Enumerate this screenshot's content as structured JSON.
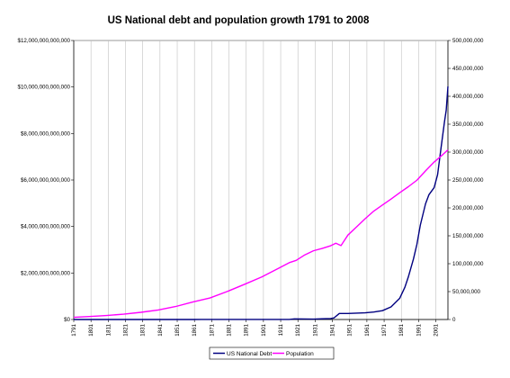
{
  "chart_data": {
    "type": "line",
    "title": "US National debt and population growth 1791 to 2008",
    "xlabel": "",
    "ylabel": "",
    "x_range": [
      1791,
      2008
    ],
    "x_tick_labels": [
      "1791",
      "1801",
      "1811",
      "1821",
      "1831",
      "1841",
      "1851",
      "1861",
      "1871",
      "1881",
      "1891",
      "1901",
      "1911",
      "1921",
      "1931",
      "1941",
      "1951",
      "1961",
      "1971",
      "1981",
      "1991",
      "2001"
    ],
    "y_left": {
      "ylim": [
        0,
        12000000000000
      ],
      "tick_labels": [
        "$0",
        "$2,000,000,000,000",
        "$4,000,000,000,000",
        "$6,000,000,000,000",
        "$8,000,000,000,000",
        "$10,000,000,000,000",
        "$12,000,000,000,000"
      ],
      "tick_values": [
        0,
        2000000000000,
        4000000000000,
        6000000000000,
        8000000000000,
        10000000000000,
        12000000000000
      ]
    },
    "y_right": {
      "ylim": [
        0,
        500000000
      ],
      "tick_labels": [
        "0",
        "50,000,000",
        "100,000,000",
        "150,000,000",
        "200,000,000",
        "250,000,000",
        "300,000,000",
        "350,000,000",
        "400,000,000",
        "450,000,000",
        "500,000,000"
      ],
      "tick_values": [
        0,
        50000000,
        100000000,
        150000000,
        200000000,
        250000000,
        300000000,
        350000000,
        400000000,
        450000000,
        500000000
      ]
    },
    "grid": true,
    "legend_position": "bottom",
    "series": [
      {
        "name": "US National Debt",
        "axis": "left",
        "color": "#000080",
        "x": [
          1791,
          1800,
          1810,
          1820,
          1830,
          1840,
          1850,
          1860,
          1865,
          1870,
          1880,
          1890,
          1900,
          1910,
          1916,
          1919,
          1925,
          1930,
          1935,
          1940,
          1942,
          1945,
          1950,
          1955,
          1960,
          1965,
          1970,
          1975,
          1980,
          1983,
          1985,
          1988,
          1990,
          1992,
          1995,
          1997,
          2000,
          2002,
          2004,
          2006,
          2007,
          2008
        ],
        "y": [
          0,
          0,
          0,
          0,
          0,
          0,
          0,
          0,
          3000000000,
          2000000000,
          2000000000,
          1000000000,
          1000000000,
          1000000000,
          1000000000,
          25000000000,
          21000000000,
          16000000000,
          29000000000,
          43000000000,
          72000000000,
          260000000000,
          257000000000,
          274000000000,
          286000000000,
          322000000000,
          380000000000,
          541000000000,
          908000000000,
          1380000000000,
          1823000000000,
          2600000000000,
          3233000000000,
          4065000000000,
          4974000000000,
          5369000000000,
          5674000000000,
          6228000000000,
          7379000000000,
          8507000000000,
          9000000000000,
          10025000000000
        ]
      },
      {
        "name": "Population",
        "axis": "right",
        "color": "#ff00ff",
        "x": [
          1791,
          1800,
          1810,
          1820,
          1830,
          1840,
          1850,
          1860,
          1870,
          1880,
          1890,
          1900,
          1910,
          1916,
          1920,
          1925,
          1930,
          1935,
          1940,
          1943,
          1946,
          1950,
          1955,
          1960,
          1965,
          1970,
          1975,
          1980,
          1985,
          1990,
          1995,
          2000,
          2005,
          2008
        ],
        "y": [
          3900000,
          5300000,
          7200000,
          9600000,
          12900000,
          17100000,
          23200000,
          31400000,
          38600000,
          50200000,
          63000000,
          76200000,
          92200000,
          101900000,
          106000000,
          115800000,
          123200000,
          127300000,
          132200000,
          136700000,
          132500000,
          151300000,
          165900000,
          180700000,
          194300000,
          205100000,
          215900000,
          227200000,
          237900000,
          249600000,
          266300000,
          282200000,
          295500000,
          304100000
        ]
      }
    ]
  }
}
